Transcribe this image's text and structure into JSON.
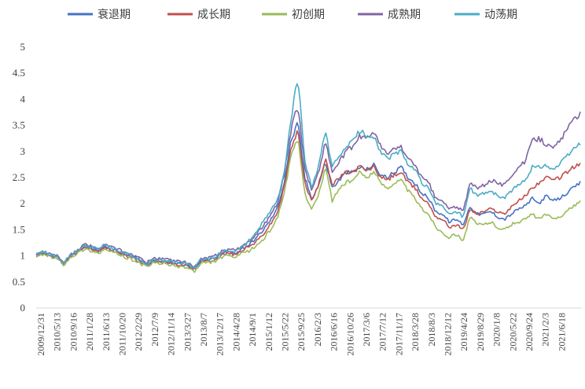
{
  "chart_data": {
    "type": "line",
    "title": "",
    "xlabel": "",
    "ylabel": "",
    "ylim": [
      0,
      5
    ],
    "y_ticks": [
      "0",
      "0.5",
      "1",
      "1.5",
      "2",
      "2.5",
      "3",
      "3.5",
      "4",
      "4.5",
      "5"
    ],
    "grid": false,
    "legend_position": "top",
    "x_tick_labels": [
      "2009/12/31",
      "2010/5/13",
      "2010/9/16",
      "2011/1/28",
      "2011/6/13",
      "2011/10/20",
      "2012/2/29",
      "2012/7/9",
      "2012/11/14",
      "2013/3/27",
      "2013/8/7",
      "2013/12/17",
      "2014/4/28",
      "2014/9/1",
      "2015/1/12",
      "2015/5/22",
      "2015/9/25",
      "2016/2/3",
      "2016/6/16",
      "2016/10/26",
      "2017/3/6",
      "2017/7/12",
      "2017/11/17",
      "2018/3/28",
      "2018/8/3",
      "2018/12/12",
      "2019/4/24",
      "2019/8/29",
      "2020/1/8",
      "2020/5/22",
      "2020/9/24",
      "2021/2/3",
      "2021/6/18"
    ],
    "series": [
      {
        "name": "衰退期",
        "color": "#4472C4",
        "values": [
          1.0,
          1.05,
          1.0,
          0.97,
          0.85,
          1.0,
          1.08,
          1.18,
          1.15,
          1.1,
          1.18,
          1.12,
          1.08,
          1.02,
          0.98,
          0.92,
          0.83,
          0.92,
          0.9,
          0.9,
          0.85,
          0.85,
          0.82,
          0.75,
          0.9,
          0.92,
          0.95,
          1.05,
          1.08,
          1.05,
          1.15,
          1.22,
          1.35,
          1.5,
          1.68,
          1.9,
          2.4,
          3.2,
          3.55,
          2.5,
          2.1,
          2.35,
          2.8,
          2.3,
          2.45,
          2.6,
          2.6,
          2.7,
          2.65,
          2.75,
          2.55,
          2.5,
          2.6,
          2.7,
          2.5,
          2.4,
          2.2,
          2.1,
          1.85,
          1.8,
          1.65,
          1.7,
          1.6,
          1.95,
          1.8,
          1.8,
          1.85,
          1.75,
          1.7,
          1.8,
          1.9,
          1.95,
          2.1,
          2.0,
          2.15,
          2.05,
          2.1,
          2.2,
          2.3,
          2.4
        ]
      },
      {
        "name": "成长期",
        "color": "#C0504D",
        "values": [
          1.0,
          1.05,
          1.0,
          0.97,
          0.85,
          1.0,
          1.07,
          1.16,
          1.13,
          1.08,
          1.16,
          1.1,
          1.06,
          1.0,
          0.96,
          0.9,
          0.82,
          0.9,
          0.88,
          0.88,
          0.83,
          0.83,
          0.8,
          0.73,
          0.88,
          0.9,
          0.93,
          1.02,
          1.05,
          1.02,
          1.12,
          1.18,
          1.28,
          1.42,
          1.6,
          1.82,
          2.3,
          3.05,
          3.4,
          2.4,
          2.05,
          2.35,
          2.9,
          2.35,
          2.5,
          2.6,
          2.6,
          2.72,
          2.62,
          2.72,
          2.5,
          2.45,
          2.55,
          2.6,
          2.4,
          2.3,
          2.1,
          2.0,
          1.75,
          1.7,
          1.55,
          1.6,
          1.5,
          1.9,
          1.8,
          1.85,
          1.9,
          1.85,
          1.8,
          1.95,
          2.05,
          2.15,
          2.3,
          2.4,
          2.5,
          2.45,
          2.5,
          2.6,
          2.7,
          2.75
        ]
      },
      {
        "name": "初创期",
        "color": "#9BBB59",
        "values": [
          0.98,
          1.03,
          0.98,
          0.95,
          0.83,
          0.98,
          1.05,
          1.13,
          1.1,
          1.05,
          1.12,
          1.07,
          1.03,
          0.97,
          0.93,
          0.87,
          0.78,
          0.87,
          0.85,
          0.85,
          0.8,
          0.8,
          0.77,
          0.7,
          0.85,
          0.87,
          0.9,
          0.98,
          1.0,
          0.97,
          1.05,
          1.1,
          1.2,
          1.32,
          1.5,
          1.72,
          2.2,
          2.9,
          3.25,
          2.2,
          1.9,
          2.15,
          2.7,
          2.05,
          2.3,
          2.4,
          2.45,
          2.6,
          2.5,
          2.62,
          2.4,
          2.3,
          2.4,
          2.45,
          2.25,
          2.1,
          1.9,
          1.8,
          1.55,
          1.45,
          1.35,
          1.42,
          1.3,
          1.75,
          1.6,
          1.6,
          1.65,
          1.55,
          1.5,
          1.6,
          1.65,
          1.7,
          1.8,
          1.7,
          1.8,
          1.7,
          1.75,
          1.85,
          1.95,
          2.05
        ]
      },
      {
        "name": "成熟期",
        "color": "#8064A2",
        "values": [
          1.02,
          1.08,
          1.03,
          1.0,
          0.87,
          1.02,
          1.1,
          1.22,
          1.19,
          1.13,
          1.22,
          1.16,
          1.12,
          1.06,
          1.02,
          0.96,
          0.86,
          0.96,
          0.94,
          0.94,
          0.89,
          0.89,
          0.86,
          0.79,
          0.94,
          0.96,
          1.0,
          1.1,
          1.13,
          1.1,
          1.2,
          1.28,
          1.42,
          1.58,
          1.78,
          2.0,
          2.55,
          3.4,
          3.9,
          2.7,
          2.25,
          2.6,
          3.2,
          2.6,
          2.8,
          3.0,
          3.1,
          3.3,
          3.25,
          3.4,
          3.1,
          2.95,
          3.05,
          3.1,
          2.85,
          2.75,
          2.5,
          2.4,
          2.1,
          2.05,
          1.9,
          1.95,
          1.85,
          2.4,
          2.3,
          2.35,
          2.45,
          2.4,
          2.35,
          2.55,
          2.7,
          2.8,
          3.2,
          3.25,
          3.15,
          3.05,
          3.2,
          3.4,
          3.6,
          3.75
        ]
      },
      {
        "name": "动荡期",
        "color": "#4BACC6",
        "values": [
          1.02,
          1.08,
          1.03,
          1.0,
          0.87,
          1.02,
          1.1,
          1.2,
          1.17,
          1.12,
          1.2,
          1.14,
          1.1,
          1.04,
          1.0,
          0.94,
          0.85,
          0.94,
          0.92,
          0.92,
          0.87,
          0.87,
          0.84,
          0.77,
          0.92,
          0.94,
          0.98,
          1.08,
          1.11,
          1.08,
          1.2,
          1.3,
          1.48,
          1.65,
          1.85,
          2.05,
          2.6,
          3.6,
          4.45,
          2.8,
          2.3,
          2.7,
          3.4,
          2.7,
          2.9,
          3.1,
          3.2,
          3.4,
          3.3,
          3.3,
          3.0,
          2.85,
          2.95,
          3.0,
          2.75,
          2.65,
          2.4,
          2.3,
          2.0,
          1.95,
          1.8,
          1.85,
          1.75,
          2.3,
          2.15,
          2.2,
          2.25,
          2.15,
          2.1,
          2.25,
          2.35,
          2.45,
          2.7,
          2.7,
          2.75,
          2.65,
          2.75,
          2.9,
          3.05,
          3.15
        ]
      }
    ]
  }
}
